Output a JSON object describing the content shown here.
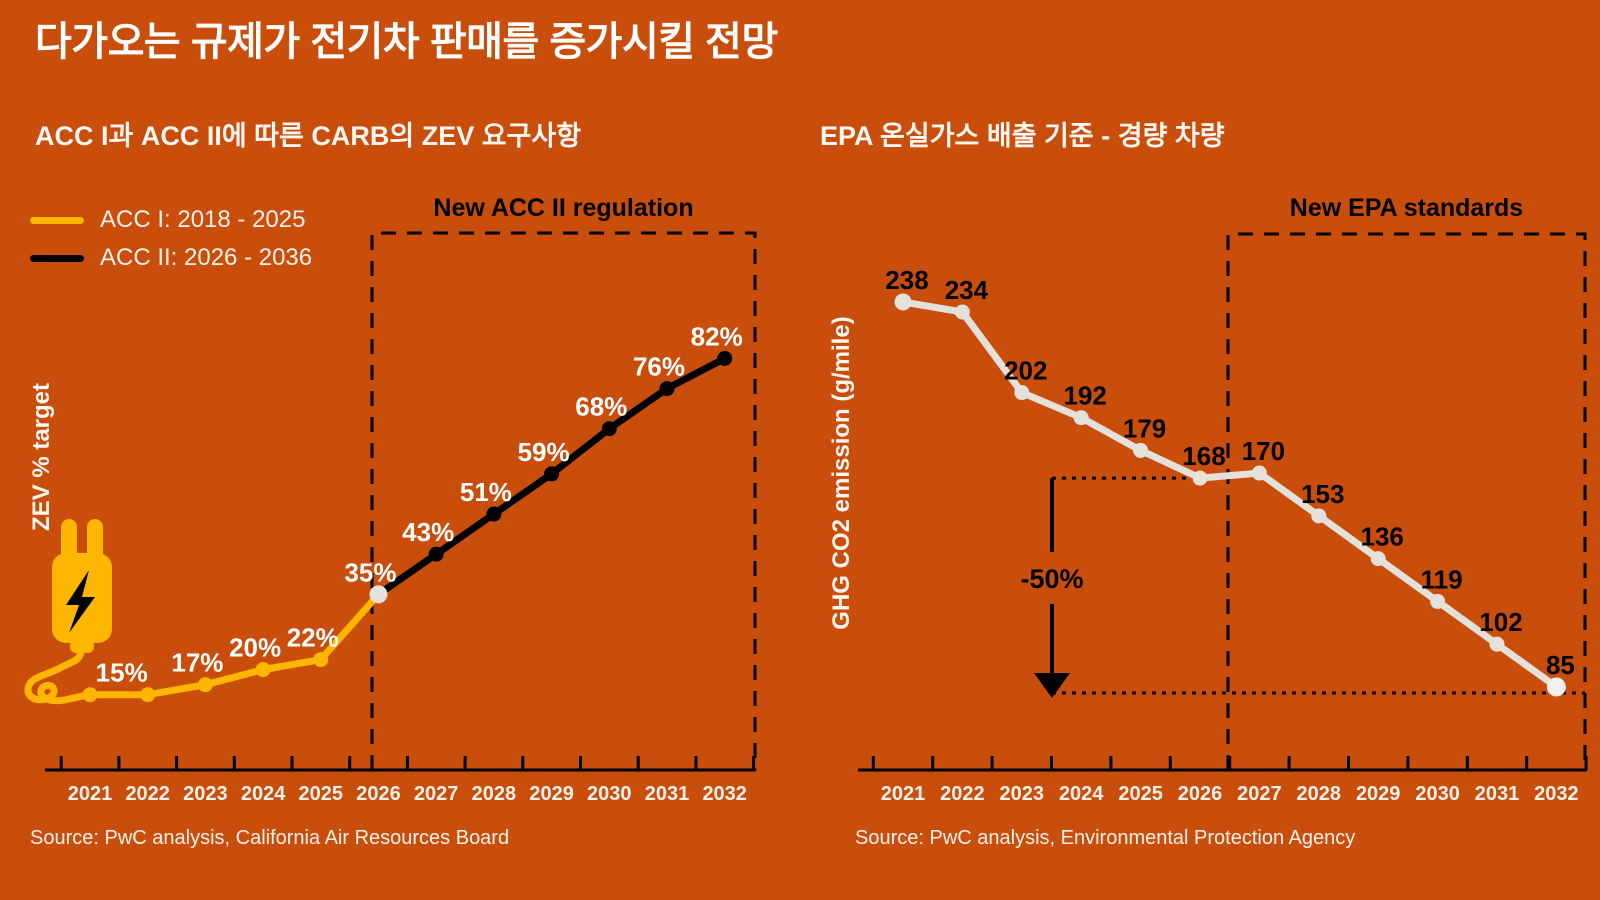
{
  "page": {
    "title": "다가오는 규제가 전기차 판매를 증가시킬 전망",
    "colors": {
      "background": "#c94d0b",
      "accent_yellow": "#ffb600",
      "accent_black": "#000000",
      "line_light": "#e4e1db",
      "text_white": "#ffffff"
    },
    "icons": {
      "plug": "electric-plug-icon",
      "bolt": "lightning-bolt-icon"
    }
  },
  "chart_data": [
    {
      "type": "line",
      "title": "ACC I과 ACC II에 따른 CARB의 ZEV 요구사항",
      "ylabel": "ZEV % target",
      "x": [
        2021,
        2022,
        2023,
        2024,
        2025,
        2026,
        2027,
        2028,
        2029,
        2030,
        2031,
        2032
      ],
      "series": [
        {
          "name": "ACC I: 2018 - 2025",
          "color": "#ffb600",
          "x": [
            2021,
            2022,
            2023,
            2024,
            2025,
            2026
          ],
          "values": [
            15,
            15,
            17,
            20,
            22,
            35
          ]
        },
        {
          "name": "ACC II: 2026 - 2036",
          "color": "#000000",
          "x": [
            2026,
            2027,
            2028,
            2029,
            2030,
            2031,
            2032
          ],
          "values": [
            35,
            43,
            51,
            59,
            68,
            76,
            82
          ]
        }
      ],
      "point_labels": [
        "",
        "15%",
        "17%",
        "20%",
        "22%",
        "35%",
        "43%",
        "51%",
        "59%",
        "68%",
        "76%",
        "82%"
      ],
      "junction_point": {
        "x": 2026,
        "value": 35
      },
      "annotation_box": {
        "label": "New ACC II regulation",
        "from_x": 2026
      },
      "ylim": [
        0,
        107
      ],
      "grid": false,
      "legend_position": "top-left",
      "source": "Source: PwC analysis, California Air Resources Board"
    },
    {
      "type": "line",
      "title": "EPA 온실가스 배출 기준 - 경량 차량",
      "ylabel": "GHG CO2 emission (g/mile)",
      "x": [
        2021,
        2022,
        2023,
        2024,
        2025,
        2026,
        2027,
        2028,
        2029,
        2030,
        2031,
        2032
      ],
      "values": [
        238,
        234,
        202,
        192,
        179,
        168,
        170,
        153,
        136,
        119,
        102,
        85
      ],
      "line_color": "#e4e1db",
      "point_labels": [
        "238",
        "234",
        "202",
        "192",
        "179",
        "168",
        "170",
        "153",
        "136",
        "119",
        "102",
        "85"
      ],
      "annotation_box": {
        "label": "New EPA standards",
        "from_x": 2026.5
      },
      "annotation_drop": {
        "label": "-50%",
        "from_value": 168,
        "to_value": 85
      },
      "ylim": [
        52,
        265
      ],
      "grid": false,
      "source": "Source: PwC analysis, Environmental Protection Agency"
    }
  ]
}
